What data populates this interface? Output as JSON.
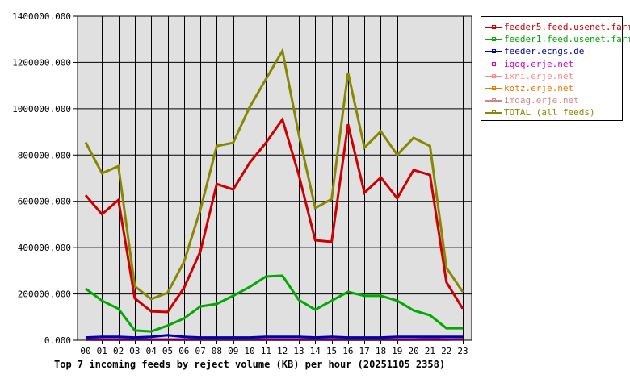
{
  "chart_data": {
    "type": "line",
    "title": "Top 7 incoming feeds by reject volume (KB) per hour (20251105 2358)",
    "xlabel": "",
    "ylabel": "",
    "ylim": [
      0,
      1400000
    ],
    "grid": true,
    "legend_position": "right",
    "y_ticks": [
      "0.000",
      "200000.000",
      "400000.000",
      "600000.000",
      "800000.000",
      "1000000.000",
      "1200000.000",
      "1400000.000"
    ],
    "categories": [
      "00",
      "01",
      "02",
      "03",
      "04",
      "05",
      "06",
      "07",
      "08",
      "09",
      "10",
      "11",
      "12",
      "13",
      "14",
      "15",
      "16",
      "17",
      "18",
      "19",
      "20",
      "21",
      "22",
      "23"
    ],
    "series": [
      {
        "name": "feeder5.feed.usenet.farm",
        "color": "#cc0000",
        "values": [
          626000,
          544000,
          606000,
          181000,
          125000,
          122000,
          226000,
          383000,
          675000,
          651000,
          766000,
          853000,
          954000,
          714000,
          432000,
          425000,
          933000,
          637000,
          703000,
          613000,
          735000,
          714000,
          251000,
          136000
        ]
      },
      {
        "name": "feeder1.feed.usenet.farm",
        "color": "#00aa00",
        "values": [
          223000,
          171000,
          136000,
          42000,
          38000,
          63000,
          94000,
          146000,
          157000,
          192000,
          230000,
          275000,
          279000,
          174000,
          132000,
          171000,
          209000,
          192000,
          192000,
          171000,
          129000,
          108000,
          52000,
          52000
        ]
      },
      {
        "name": "feeder.ecngs.de",
        "color": "#0000aa",
        "values": [
          12000,
          15000,
          15000,
          12000,
          15000,
          22000,
          15000,
          12000,
          12000,
          12000,
          12000,
          15000,
          15000,
          15000,
          12000,
          15000,
          12000,
          12000,
          12000,
          15000,
          15000,
          15000,
          15000,
          15000
        ]
      },
      {
        "name": "iqoq.erje.net",
        "color": "#cc00cc",
        "values": [
          3000,
          3000,
          3000,
          3000,
          3000,
          3000,
          3000,
          3000,
          3000,
          3000,
          3000,
          3000,
          3000,
          3000,
          3000,
          3000,
          3000,
          3000,
          3000,
          3000,
          3000,
          7000,
          3000,
          3000
        ]
      },
      {
        "name": "ixni.erje.net",
        "color": "#ff8888",
        "values": [
          4000,
          4000,
          4000,
          4000,
          4000,
          4000,
          4000,
          4000,
          4000,
          4000,
          4000,
          4000,
          4000,
          4000,
          4000,
          4000,
          4000,
          4000,
          4000,
          4000,
          4000,
          4000,
          4000,
          4000
        ]
      },
      {
        "name": "kotz.erje.net",
        "color": "#ee7700",
        "values": [
          2000,
          2000,
          2000,
          2000,
          2000,
          2000,
          2000,
          2000,
          2000,
          2000,
          2000,
          2000,
          2000,
          2000,
          2000,
          2000,
          2000,
          2000,
          2000,
          2000,
          2000,
          2000,
          2000,
          6000
        ]
      },
      {
        "name": "imqag.erje.net",
        "color": "#cc8888",
        "values": [
          4000,
          4000,
          4000,
          4000,
          4000,
          4000,
          4000,
          4000,
          4000,
          4000,
          4000,
          4000,
          4000,
          4000,
          4000,
          4000,
          4000,
          4000,
          4000,
          4000,
          4000,
          4000,
          4000,
          4000
        ]
      },
      {
        "name": "TOTAL (all feeds)",
        "color": "#888800",
        "values": [
          855000,
          721000,
          752000,
          233000,
          178000,
          205000,
          338000,
          564000,
          839000,
          853000,
          1006000,
          1128000,
          1250000,
          888000,
          571000,
          609000,
          1156000,
          832000,
          902000,
          801000,
          874000,
          839000,
          313000,
          209000
        ]
      }
    ]
  },
  "legend": {
    "items": [
      {
        "label": "feeder5.feed.usenet.farm",
        "color": "#cc0000"
      },
      {
        "label": "feeder1.feed.usenet.farm",
        "color": "#00aa00"
      },
      {
        "label": "feeder.ecngs.de",
        "color": "#0000aa"
      },
      {
        "label": "iqoq.erje.net",
        "color": "#cc00cc"
      },
      {
        "label": "ixni.erje.net",
        "color": "#ff8888"
      },
      {
        "label": "kotz.erje.net",
        "color": "#ee7700"
      },
      {
        "label": "imqag.erje.net",
        "color": "#cc8888"
      },
      {
        "label": "TOTAL (all feeds)",
        "color": "#888800"
      }
    ]
  },
  "colors": {
    "plot_bg": "#e0e0e0",
    "grid": "#000000"
  }
}
